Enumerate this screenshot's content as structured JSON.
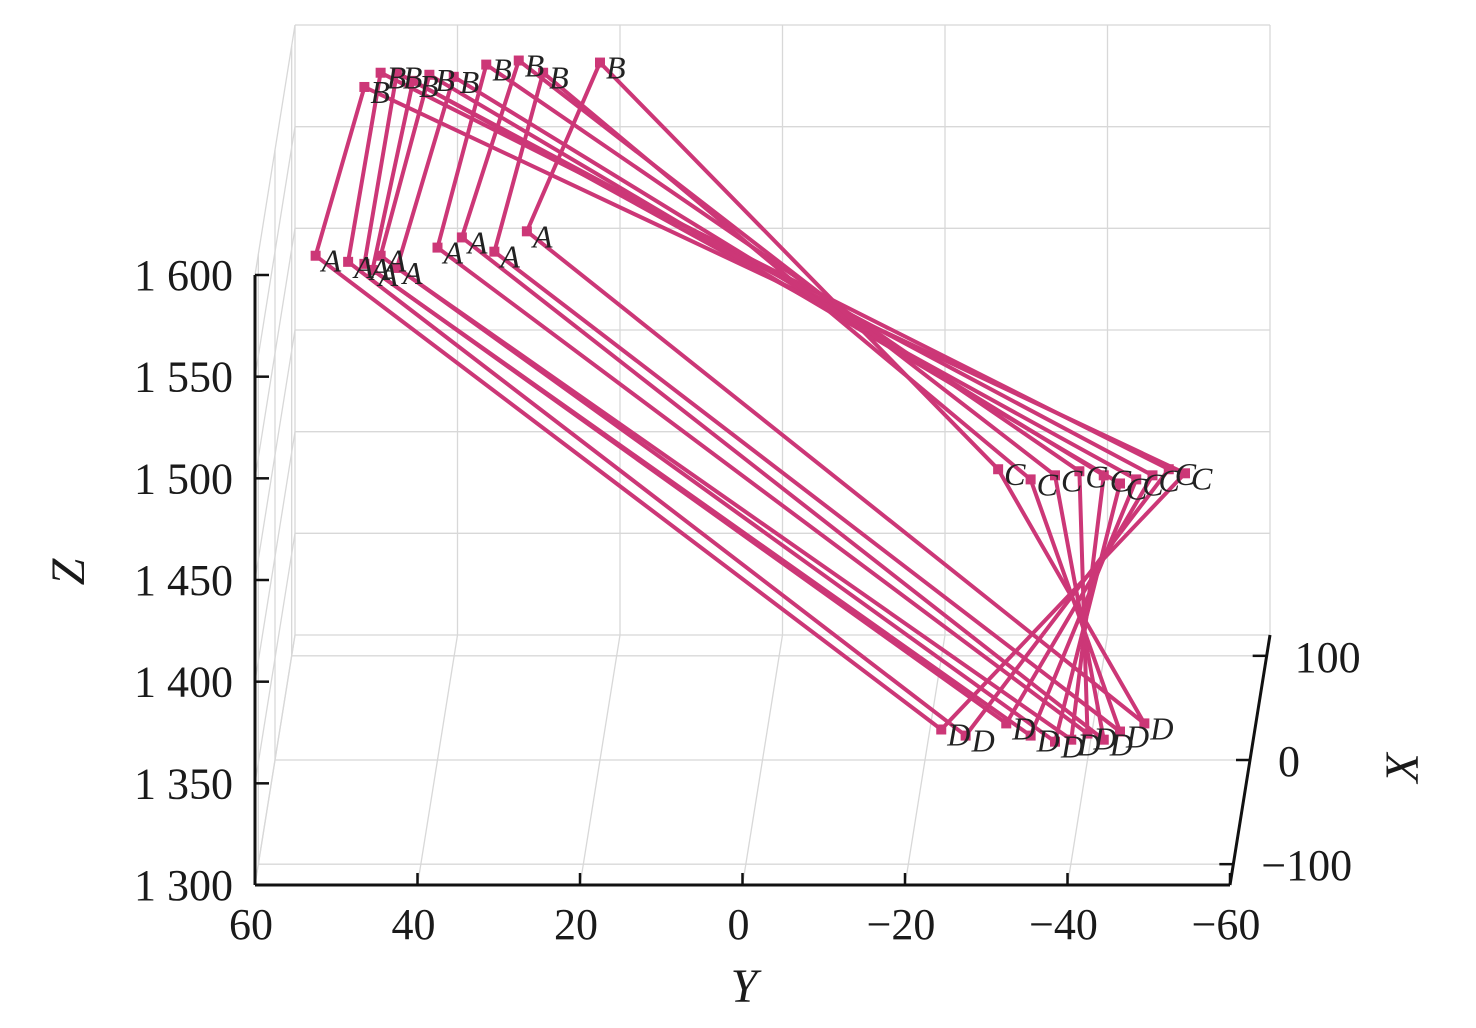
{
  "colors": {
    "series": "#cc3777",
    "axis": "#111111",
    "grid": "#d8d8d8",
    "text": "#1a1a1a"
  },
  "chart_data": {
    "type": "line",
    "projection": "3d",
    "title": "",
    "xlabel": "X",
    "ylabel": "Y",
    "zlabel": "Z",
    "xlim": [
      -120,
      120
    ],
    "ylim": [
      60,
      -60
    ],
    "zlim": [
      1300,
      1600
    ],
    "x_ticks": [
      "100",
      "0",
      "−100"
    ],
    "y_ticks": [
      "60",
      "40",
      "20",
      "0",
      "−20",
      "−40",
      "−60"
    ],
    "z_ticks": [
      "1 600",
      "1 550",
      "1 500",
      "1 450",
      "1 400",
      "1 350",
      "1 300"
    ],
    "grid": true,
    "path_order": [
      "A",
      "B",
      "C",
      "D",
      "A"
    ],
    "point_labels": {
      "A": "A",
      "B": "B",
      "C": "C",
      "D": "D"
    },
    "series": [
      {
        "A": [
          0,
          55,
          1548
        ],
        "B": [
          0,
          49,
          1631
        ],
        "C": [
          0,
          -52,
          1441
        ],
        "D": [
          0,
          -22,
          1315
        ]
      },
      {
        "A": [
          0,
          51,
          1545
        ],
        "B": [
          0,
          47,
          1638
        ],
        "C": [
          0,
          -50,
          1443
        ],
        "D": [
          0,
          -25,
          1312
        ]
      },
      {
        "A": [
          0,
          49,
          1544
        ],
        "B": [
          0,
          45,
          1638
        ],
        "C": [
          0,
          -48,
          1440
        ],
        "D": [
          0,
          -30,
          1318
        ]
      },
      {
        "A": [
          0,
          48,
          1541
        ],
        "B": [
          0,
          43,
          1634
        ],
        "C": [
          0,
          -46,
          1438
        ],
        "D": [
          0,
          -33,
          1312
        ]
      },
      {
        "A": [
          0,
          47,
          1548
        ],
        "B": [
          0,
          41,
          1637
        ],
        "C": [
          0,
          -44,
          1436
        ],
        "D": [
          0,
          -36,
          1309
        ]
      },
      {
        "A": [
          0,
          45,
          1542
        ],
        "B": [
          0,
          38,
          1636
        ],
        "C": [
          0,
          -42,
          1440
        ],
        "D": [
          0,
          -38,
          1310
        ]
      },
      {
        "A": [
          0,
          40,
          1552
        ],
        "B": [
          0,
          34,
          1642
        ],
        "C": [
          0,
          -39,
          1442
        ],
        "D": [
          0,
          -40,
          1313
        ]
      },
      {
        "A": [
          0,
          37,
          1557
        ],
        "B": [
          0,
          30,
          1644
        ],
        "C": [
          0,
          -36,
          1440
        ],
        "D": [
          0,
          -42,
          1310
        ]
      },
      {
        "A": [
          0,
          33,
          1550
        ],
        "B": [
          0,
          27,
          1638
        ],
        "C": [
          0,
          -33,
          1438
        ],
        "D": [
          0,
          -44,
          1314
        ]
      },
      {
        "A": [
          0,
          29,
          1560
        ],
        "B": [
          0,
          20,
          1643
        ],
        "C": [
          0,
          -29,
          1443
        ],
        "D": [
          0,
          -47,
          1318
        ]
      }
    ]
  }
}
